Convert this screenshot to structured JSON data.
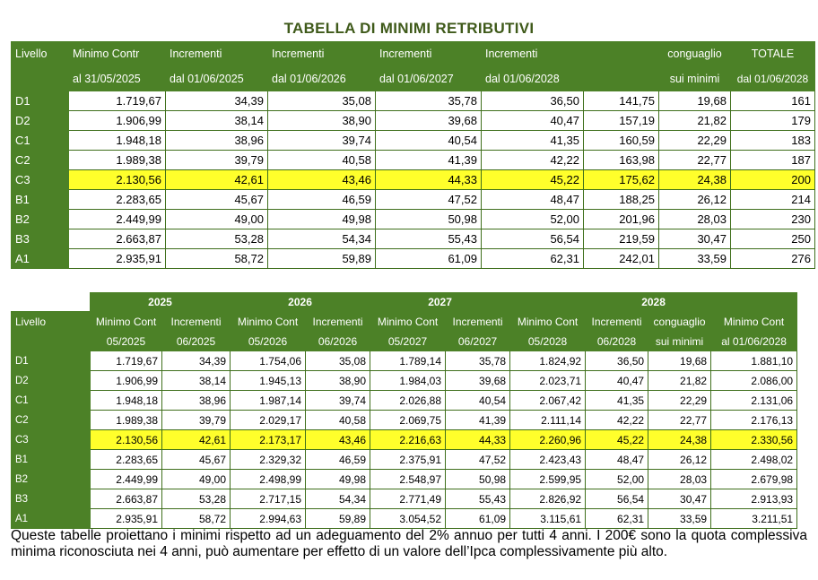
{
  "title": "TABELLA DI MINIMI RETRIBUTIVI",
  "table1": {
    "headers_top": [
      "Livello",
      "Minimo Contr",
      "Incrementi",
      "Incrementi",
      "Incrementi",
      "Incrementi",
      "",
      "conguaglio",
      "TOTALE"
    ],
    "headers_bottom": [
      "",
      "al 31/05/2025",
      "dal 01/06/2025",
      "dal 01/06/2026",
      "dal 01/06/2027",
      "dal 01/06/2028",
      "",
      "sui minimi",
      "dal 01/06/2028"
    ],
    "rows": [
      [
        "D1",
        "1.719,67",
        "34,39",
        "35,08",
        "35,78",
        "36,50",
        "141,75",
        "19,68",
        "161"
      ],
      [
        "D2",
        "1.906,99",
        "38,14",
        "38,90",
        "39,68",
        "40,47",
        "157,19",
        "21,82",
        "179"
      ],
      [
        "C1",
        "1.948,18",
        "38,96",
        "39,74",
        "40,54",
        "41,35",
        "160,59",
        "22,29",
        "183"
      ],
      [
        "C2",
        "1.989,38",
        "39,79",
        "40,58",
        "41,39",
        "42,22",
        "163,98",
        "22,77",
        "187"
      ],
      [
        "C3",
        "2.130,56",
        "42,61",
        "43,46",
        "44,33",
        "45,22",
        "175,62",
        "24,38",
        "200"
      ],
      [
        "B1",
        "2.283,65",
        "45,67",
        "46,59",
        "47,52",
        "48,47",
        "188,25",
        "26,12",
        "214"
      ],
      [
        "B2",
        "2.449,99",
        "49,00",
        "49,98",
        "50,98",
        "52,00",
        "201,96",
        "28,03",
        "230"
      ],
      [
        "B3",
        "2.663,87",
        "53,28",
        "54,34",
        "55,43",
        "56,54",
        "219,59",
        "30,47",
        "250"
      ],
      [
        "A1",
        "2.935,91",
        "58,72",
        "59,89",
        "61,09",
        "62,31",
        "242,01",
        "33,59",
        "276"
      ]
    ]
  },
  "table2": {
    "years": [
      "2025",
      "2026",
      "2027",
      "2028"
    ],
    "livello_label": "Livello",
    "sub_top": [
      "Minimo Cont",
      "Incrementi",
      "Minimo Cont",
      "Incrementi",
      "Minimo Cont",
      "Incrementi",
      "Minimo Cont",
      "Incrementi",
      "conguaglio",
      "Minimo Cont"
    ],
    "sub_bottom": [
      "05/2025",
      "06/2025",
      "05/2026",
      "06/2026",
      "05/2027",
      "06/2027",
      "05/2028",
      "06/2028",
      "sui minimi",
      "al 01/06/2028"
    ],
    "rows": [
      [
        "D1",
        "1.719,67",
        "34,39",
        "1.754,06",
        "35,08",
        "1.789,14",
        "35,78",
        "1.824,92",
        "36,50",
        "19,68",
        "1.881,10"
      ],
      [
        "D2",
        "1.906,99",
        "38,14",
        "1.945,13",
        "38,90",
        "1.984,03",
        "39,68",
        "2.023,71",
        "40,47",
        "21,82",
        "2.086,00"
      ],
      [
        "C1",
        "1.948,18",
        "38,96",
        "1.987,14",
        "39,74",
        "2.026,88",
        "40,54",
        "2.067,42",
        "41,35",
        "22,29",
        "2.131,06"
      ],
      [
        "C2",
        "1.989,38",
        "39,79",
        "2.029,17",
        "40,58",
        "2.069,75",
        "41,39",
        "2.111,14",
        "42,22",
        "22,77",
        "2.176,13"
      ],
      [
        "C3",
        "2.130,56",
        "42,61",
        "2.173,17",
        "43,46",
        "2.216,63",
        "44,33",
        "2.260,96",
        "45,22",
        "24,38",
        "2.330,56"
      ],
      [
        "B1",
        "2.283,65",
        "45,67",
        "2.329,32",
        "46,59",
        "2.375,91",
        "47,52",
        "2.423,43",
        "48,47",
        "26,12",
        "2.498,02"
      ],
      [
        "B2",
        "2.449,99",
        "49,00",
        "2.498,99",
        "49,98",
        "2.548,97",
        "50,98",
        "2.599,95",
        "52,00",
        "28,03",
        "2.679,98"
      ],
      [
        "B3",
        "2.663,87",
        "53,28",
        "2.717,15",
        "54,34",
        "2.771,49",
        "55,43",
        "2.826,92",
        "56,54",
        "30,47",
        "2.913,93"
      ],
      [
        "A1",
        "2.935,91",
        "58,72",
        "2.994,63",
        "59,89",
        "3.054,52",
        "61,09",
        "3.115,61",
        "62,31",
        "33,59",
        "3.211,51"
      ]
    ]
  },
  "highlight_row": "C3",
  "colors": {
    "header_green": "#4c8127",
    "title_green": "#3f5a1a",
    "highlight_yellow": "#ffff2b"
  },
  "note": "Queste tabelle proiettano i minimi rispetto ad un adeguamento del 2% annuo per tutti 4 anni. I 200€ sono la quota complessiva minima riconosciuta nei 4 anni, può aumentare per effetto di un valore dell’Ipca complessivamente più alto."
}
